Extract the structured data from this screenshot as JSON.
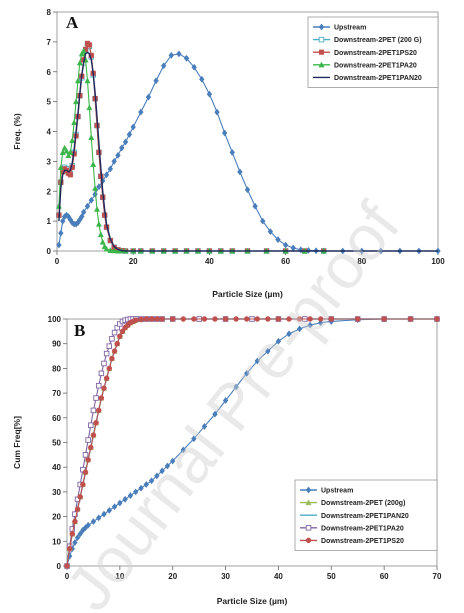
{
  "watermark": "Journal Pre-proof",
  "chart_data": [
    {
      "type": "line",
      "panel_label": "A",
      "xlabel": "Particle Size (µm)",
      "ylabel": "Freq. (%)",
      "xlim": [
        0,
        100
      ],
      "ylim": [
        0,
        8
      ],
      "xticks": [
        0,
        20,
        40,
        60,
        80,
        100
      ],
      "yticks": [
        0,
        1,
        2,
        3,
        4,
        5,
        6,
        7,
        8
      ],
      "legend_position": "top-right",
      "series": [
        {
          "name": "Upstream",
          "color": "#4a7ebb",
          "marker": "diamond",
          "x": [
            0.5,
            1,
            1.5,
            2,
            2.5,
            3,
            3.5,
            4,
            4.5,
            5,
            5.5,
            6,
            6.5,
            7,
            8,
            9,
            10,
            11,
            12,
            13,
            14,
            15,
            16,
            17,
            18,
            19,
            20,
            22,
            24,
            26,
            28,
            30,
            32,
            34,
            36,
            38,
            40,
            42,
            44,
            46,
            48,
            50,
            52,
            54,
            56,
            58,
            60,
            62,
            64,
            66,
            68,
            70,
            75,
            80,
            85,
            90,
            95,
            100
          ],
          "y": [
            0.2,
            0.6,
            1.0,
            1.15,
            1.2,
            1.15,
            1.05,
            0.95,
            0.9,
            0.9,
            0.95,
            1.05,
            1.15,
            1.3,
            1.5,
            1.7,
            1.9,
            2.15,
            2.35,
            2.55,
            2.75,
            3.0,
            3.2,
            3.45,
            3.65,
            3.9,
            4.15,
            4.65,
            5.15,
            5.7,
            6.2,
            6.55,
            6.6,
            6.45,
            6.15,
            5.75,
            5.25,
            4.65,
            3.95,
            3.3,
            2.65,
            2.05,
            1.5,
            1.0,
            0.65,
            0.38,
            0.2,
            0.1,
            0.04,
            0.02,
            0.01,
            0,
            0,
            0,
            0,
            0,
            0,
            0
          ]
        },
        {
          "name": "Downstream-2PET (200 G)",
          "color": "#4bacc6",
          "marker": "open-square",
          "x": [
            0.5,
            1,
            1.5,
            2,
            2.5,
            3,
            3.5,
            4,
            4.5,
            5,
            5.5,
            6,
            6.5,
            7,
            7.5,
            8,
            8.5,
            9,
            9.5,
            10,
            10.5,
            11,
            11.5,
            12,
            12.5,
            13,
            14,
            15,
            16,
            17,
            18,
            20,
            22,
            25,
            28,
            31,
            34,
            37,
            40,
            43,
            46,
            50,
            55,
            60,
            65,
            70
          ],
          "y": [
            1.2,
            2.3,
            2.7,
            2.8,
            2.75,
            2.65,
            2.6,
            2.85,
            3.3,
            3.9,
            4.5,
            5.2,
            5.8,
            6.3,
            6.7,
            6.9,
            6.85,
            6.5,
            5.9,
            5.1,
            4.2,
            3.3,
            2.5,
            1.8,
            1.2,
            0.8,
            0.35,
            0.12,
            0.04,
            0.01,
            0,
            0,
            0,
            0,
            0,
            0,
            0,
            0,
            0,
            0,
            0,
            0,
            0,
            0,
            0,
            0
          ]
        },
        {
          "name": "Downstream-2PET1PS20",
          "color": "#c0504d",
          "marker": "square",
          "x": [
            0.5,
            1,
            1.5,
            2,
            2.5,
            3,
            3.5,
            4,
            4.5,
            5,
            5.5,
            6,
            6.5,
            7,
            7.5,
            8,
            8.5,
            9,
            9.5,
            10,
            10.5,
            11,
            11.5,
            12,
            12.5,
            13,
            14,
            15,
            16,
            17,
            18,
            20,
            22,
            25,
            28,
            31,
            34,
            37,
            40,
            43,
            46,
            50,
            55,
            60,
            65,
            70
          ],
          "y": [
            1.2,
            2.3,
            2.65,
            2.75,
            2.7,
            2.6,
            2.55,
            2.8,
            3.25,
            3.85,
            4.5,
            5.2,
            5.85,
            6.4,
            6.75,
            6.95,
            6.9,
            6.55,
            5.95,
            5.1,
            4.2,
            3.3,
            2.5,
            1.8,
            1.2,
            0.8,
            0.35,
            0.12,
            0.04,
            0.01,
            0,
            0,
            0,
            0,
            0,
            0,
            0,
            0,
            0,
            0,
            0,
            0,
            0,
            0,
            0,
            0
          ]
        },
        {
          "name": "Downstream-2PET1PA20",
          "color": "#3cb64a",
          "marker": "triangle",
          "x": [
            0.5,
            1,
            1.5,
            2,
            2.5,
            3,
            3.5,
            4,
            4.5,
            5,
            5.5,
            6,
            6.5,
            7,
            7.5,
            8,
            8.5,
            9,
            9.5,
            10,
            10.5,
            11,
            11.5,
            12,
            12.5,
            13,
            14,
            15,
            16,
            17,
            18,
            20,
            22,
            25,
            28,
            31,
            34,
            37,
            40,
            43,
            46,
            50,
            55,
            60,
            65,
            70
          ],
          "y": [
            1.5,
            2.8,
            3.3,
            3.45,
            3.35,
            3.2,
            3.3,
            3.7,
            4.3,
            5.0,
            5.7,
            6.3,
            6.6,
            6.7,
            6.4,
            5.7,
            4.8,
            3.8,
            2.9,
            2.1,
            1.4,
            0.9,
            0.55,
            0.3,
            0.15,
            0.07,
            0.02,
            0.01,
            0,
            0,
            0,
            0,
            0,
            0,
            0,
            0,
            0,
            0,
            0,
            0,
            0,
            0,
            0,
            0,
            0,
            0
          ]
        },
        {
          "name": "Downstream-2PET1PAN20",
          "color": "#1f2a5c",
          "marker": "none",
          "x": [
            0.5,
            1,
            1.5,
            2,
            2.5,
            3,
            3.5,
            4,
            4.5,
            5,
            5.5,
            6,
            6.5,
            7,
            7.5,
            8,
            8.5,
            9,
            9.5,
            10,
            10.5,
            11,
            11.5,
            12,
            12.5,
            13,
            14,
            15,
            16,
            17,
            18,
            20,
            25,
            30,
            40,
            50,
            60,
            70,
            80,
            90,
            100
          ],
          "y": [
            1.0,
            2.1,
            2.55,
            2.7,
            2.7,
            2.65,
            2.7,
            2.95,
            3.4,
            4.0,
            4.6,
            5.3,
            5.9,
            6.3,
            6.6,
            6.65,
            6.6,
            6.4,
            5.95,
            5.3,
            4.5,
            3.6,
            2.8,
            2.0,
            1.4,
            0.9,
            0.4,
            0.15,
            0.05,
            0.01,
            0,
            0,
            0,
            0,
            0,
            0,
            0,
            0,
            0,
            0,
            0
          ]
        }
      ]
    },
    {
      "type": "line",
      "panel_label": "B",
      "xlabel": "Particle Size (µm)",
      "ylabel": "Cum Freq[%]",
      "xlim": [
        0,
        70
      ],
      "ylim": [
        0,
        100
      ],
      "xticks": [
        0,
        10,
        20,
        30,
        40,
        50,
        60,
        70
      ],
      "yticks": [
        0,
        10,
        20,
        30,
        40,
        50,
        60,
        70,
        80,
        90,
        100
      ],
      "legend_position": "bottom-right",
      "series": [
        {
          "name": "Upstream",
          "color": "#4a7ebb",
          "marker": "diamond",
          "x": [
            0,
            0.5,
            1,
            1.5,
            2,
            2.5,
            3,
            3.5,
            4,
            5,
            6,
            7,
            8,
            9,
            10,
            11,
            12,
            13,
            14,
            15,
            16,
            17,
            18,
            19,
            20,
            22,
            24,
            26,
            28,
            30,
            32,
            34,
            36,
            38,
            40,
            42,
            44,
            46,
            48,
            50,
            55,
            60,
            65,
            70
          ],
          "y": [
            0,
            4,
            7,
            9.5,
            11.5,
            13,
            14.5,
            15.5,
            16.5,
            18,
            19.5,
            21,
            22.5,
            24,
            25.5,
            27,
            28.5,
            30,
            31.5,
            33,
            34.5,
            36.5,
            38.5,
            40.5,
            42.5,
            47,
            51.5,
            56.5,
            61.5,
            67,
            72.5,
            78,
            83,
            87,
            91,
            94,
            96,
            97.5,
            98.5,
            99,
            99.7,
            100,
            100,
            100
          ]
        },
        {
          "name": "Downstream-2PET (200g)",
          "color": "#9bbb59",
          "marker": "triangle",
          "x": [
            0,
            0.5,
            1,
            1.5,
            2,
            2.5,
            3,
            3.5,
            4,
            4.5,
            5,
            5.5,
            6,
            6.5,
            7,
            7.5,
            8,
            8.5,
            9,
            9.5,
            10,
            10.5,
            11,
            11.5,
            12,
            12.5,
            13,
            14,
            15,
            16,
            17,
            18,
            20,
            25,
            30,
            35,
            40,
            45,
            50,
            55,
            60,
            65,
            70
          ],
          "y": [
            0,
            7,
            13,
            18,
            23,
            28,
            33,
            38,
            43,
            48,
            53,
            58,
            63,
            68,
            72,
            76,
            80,
            84,
            87,
            90,
            93,
            95,
            96.5,
            97.5,
            98.5,
            99,
            99.5,
            99.8,
            100,
            100,
            100,
            100,
            100,
            100,
            100,
            100,
            100,
            100,
            100,
            100,
            100,
            100,
            100
          ]
        },
        {
          "name": "Downstream-2PET1PAN20",
          "color": "#4bacc6",
          "marker": "none",
          "x": [
            0,
            0.5,
            1,
            1.5,
            2,
            2.5,
            3,
            3.5,
            4,
            4.5,
            5,
            5.5,
            6,
            6.5,
            7,
            7.5,
            8,
            8.5,
            9,
            9.5,
            10,
            10.5,
            11,
            11.5,
            12,
            12.5,
            13,
            14,
            15,
            16,
            18,
            20,
            25,
            30,
            40,
            50,
            60,
            70
          ],
          "y": [
            0,
            7,
            13,
            18,
            23,
            28,
            33,
            38,
            43,
            48,
            53,
            58,
            63,
            68,
            72,
            76,
            80,
            84,
            87,
            90,
            93,
            95,
            96.5,
            97.5,
            98.5,
            99,
            99.5,
            99.8,
            100,
            100,
            100,
            100,
            100,
            100,
            100,
            100,
            100,
            100
          ]
        },
        {
          "name": "Downstream-2PET1PA20",
          "color": "#8064a2",
          "marker": "open-square",
          "x": [
            0,
            0.5,
            1,
            1.5,
            2,
            2.5,
            3,
            3.5,
            4,
            4.5,
            5,
            5.5,
            6,
            6.5,
            7,
            7.5,
            8,
            8.5,
            9,
            9.5,
            10,
            10.5,
            11,
            11.5,
            12,
            12.5,
            13,
            14,
            15,
            16,
            17,
            18,
            20,
            25,
            30,
            35,
            40,
            45,
            50,
            55,
            60,
            65,
            70
          ],
          "y": [
            0,
            8,
            15,
            21,
            27,
            33,
            39,
            45,
            51,
            57,
            63,
            68,
            73,
            78,
            82,
            86,
            89,
            92,
            94.5,
            96.5,
            98,
            99,
            99.5,
            99.8,
            100,
            100,
            100,
            100,
            100,
            100,
            100,
            100,
            100,
            100,
            100,
            100,
            100,
            100,
            100,
            100,
            100,
            100,
            100
          ]
        },
        {
          "name": "Downstream-2PET1PS20",
          "color": "#c0504d",
          "marker": "circle",
          "x": [
            0,
            0.5,
            1,
            1.5,
            2,
            2.5,
            3,
            3.5,
            4,
            4.5,
            5,
            5.5,
            6,
            6.5,
            7,
            7.5,
            8,
            8.5,
            9,
            9.5,
            10,
            10.5,
            11,
            11.5,
            12,
            12.5,
            13,
            14,
            15,
            16,
            17,
            18,
            20,
            22,
            24,
            26,
            28,
            30,
            32,
            34,
            36,
            38,
            40,
            42,
            44,
            46,
            48,
            50,
            55,
            60,
            65,
            70
          ],
          "y": [
            0,
            7,
            13,
            18,
            23,
            28,
            33,
            38,
            43,
            48,
            53,
            58,
            63,
            68,
            72,
            76,
            80,
            84,
            87,
            90,
            93,
            95,
            96.5,
            97.5,
            98.5,
            99,
            99.5,
            99.8,
            100,
            100,
            100,
            100,
            100,
            100,
            100,
            100,
            100,
            100,
            100,
            100,
            100,
            100,
            100,
            100,
            100,
            100,
            100,
            100,
            100,
            100,
            100,
            100
          ]
        }
      ]
    }
  ]
}
